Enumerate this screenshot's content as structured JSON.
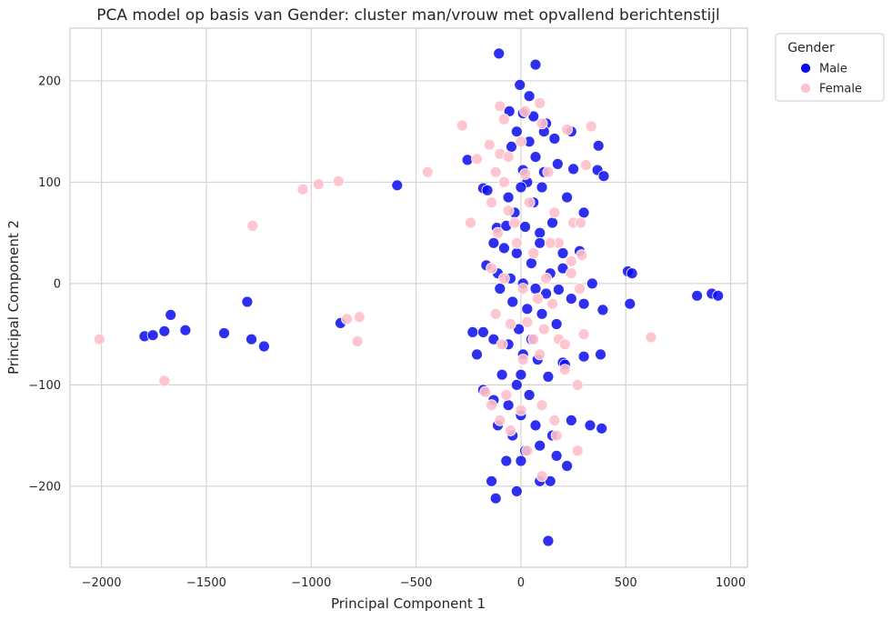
{
  "chart_data": {
    "type": "scatter",
    "title": "PCA model op basis van Gender: cluster man/vrouw met opvallend berichtenstijl",
    "xlabel": "Principal Component 1",
    "ylabel": "Principal Component 2",
    "xlim": [
      -2150,
      1080
    ],
    "ylim": [
      -280,
      252
    ],
    "xticks": [
      -2000,
      -1500,
      -1000,
      -500,
      0,
      500,
      1000
    ],
    "yticks": [
      -200,
      -100,
      0,
      100,
      200
    ],
    "xtick_labels": [
      "−2000",
      "−1500",
      "−1000",
      "−500",
      "0",
      "500",
      "1000"
    ],
    "ytick_labels": [
      "−200",
      "−100",
      "0",
      "100",
      "200"
    ],
    "grid": true,
    "legend": {
      "title": "Gender",
      "placement": "outside-top-right"
    },
    "series": [
      {
        "name": "Male",
        "color": "#0a0af0",
        "points": [
          [
            -1795,
            -52
          ],
          [
            -1755,
            -51
          ],
          [
            -1700,
            -47
          ],
          [
            -1670,
            -31
          ],
          [
            -1600,
            -46
          ],
          [
            -1415,
            -49
          ],
          [
            -1305,
            -18
          ],
          [
            -1285,
            -55
          ],
          [
            -1225,
            -62
          ],
          [
            -860,
            -39
          ],
          [
            -590,
            97
          ],
          [
            -105,
            227
          ],
          [
            70,
            216
          ],
          [
            -5,
            196
          ],
          [
            40,
            185
          ],
          [
            -55,
            170
          ],
          [
            10,
            168
          ],
          [
            60,
            165
          ],
          [
            120,
            158
          ],
          [
            -20,
            150
          ],
          [
            40,
            140
          ],
          [
            110,
            150
          ],
          [
            160,
            143
          ],
          [
            240,
            150
          ],
          [
            370,
            136
          ],
          [
            -45,
            135
          ],
          [
            70,
            125
          ],
          [
            10,
            112
          ],
          [
            -255,
            122
          ],
          [
            -180,
            94
          ],
          [
            -160,
            92
          ],
          [
            30,
            100
          ],
          [
            110,
            110
          ],
          [
            175,
            118
          ],
          [
            250,
            113
          ],
          [
            365,
            112
          ],
          [
            395,
            106
          ],
          [
            -60,
            85
          ],
          [
            0,
            95
          ],
          [
            60,
            80
          ],
          [
            100,
            95
          ],
          [
            220,
            85
          ],
          [
            300,
            70
          ],
          [
            -115,
            55
          ],
          [
            -70,
            57
          ],
          [
            20,
            56
          ],
          [
            90,
            50
          ],
          [
            -130,
            40
          ],
          [
            -80,
            35
          ],
          [
            -20,
            30
          ],
          [
            50,
            20
          ],
          [
            140,
            10
          ],
          [
            200,
            15
          ],
          [
            280,
            32
          ],
          [
            -165,
            18
          ],
          [
            -110,
            10
          ],
          [
            -50,
            5
          ],
          [
            10,
            0
          ],
          [
            70,
            -5
          ],
          [
            120,
            -10
          ],
          [
            180,
            -6
          ],
          [
            240,
            -15
          ],
          [
            300,
            -20
          ],
          [
            340,
            0
          ],
          [
            390,
            -26
          ],
          [
            510,
            12
          ],
          [
            530,
            10
          ],
          [
            520,
            -20
          ],
          [
            840,
            -12
          ],
          [
            910,
            -10
          ],
          [
            940,
            -12
          ],
          [
            -100,
            -5
          ],
          [
            -40,
            -18
          ],
          [
            30,
            -25
          ],
          [
            100,
            -30
          ],
          [
            170,
            -40
          ],
          [
            -230,
            -48
          ],
          [
            -180,
            -48
          ],
          [
            -130,
            -55
          ],
          [
            -60,
            -60
          ],
          [
            10,
            -70
          ],
          [
            80,
            -75
          ],
          [
            200,
            -78
          ],
          [
            300,
            -72
          ],
          [
            380,
            -70
          ],
          [
            -210,
            -70
          ],
          [
            -90,
            -90
          ],
          [
            -20,
            -100
          ],
          [
            40,
            -110
          ],
          [
            130,
            -92
          ],
          [
            210,
            -80
          ],
          [
            -130,
            -115
          ],
          [
            -60,
            -120
          ],
          [
            0,
            -130
          ],
          [
            70,
            -140
          ],
          [
            150,
            -150
          ],
          [
            240,
            -135
          ],
          [
            330,
            -140
          ],
          [
            385,
            -143
          ],
          [
            -180,
            -105
          ],
          [
            -110,
            -140
          ],
          [
            -40,
            -150
          ],
          [
            20,
            -165
          ],
          [
            90,
            -160
          ],
          [
            170,
            -170
          ],
          [
            220,
            -180
          ],
          [
            -140,
            -195
          ],
          [
            -70,
            -175
          ],
          [
            -20,
            -205
          ],
          [
            90,
            -195
          ],
          [
            140,
            -195
          ],
          [
            -120,
            -212
          ],
          [
            130,
            -254
          ],
          [
            0,
            -175
          ],
          [
            50,
            -55
          ],
          [
            -10,
            -45
          ],
          [
            90,
            40
          ],
          [
            150,
            60
          ],
          [
            200,
            30
          ],
          [
            -30,
            70
          ],
          [
            0,
            -90
          ]
        ]
      },
      {
        "name": "Female",
        "color": "#ffc0cb",
        "points": [
          [
            -2010,
            -55
          ],
          [
            -1700,
            -96
          ],
          [
            -1280,
            57
          ],
          [
            -1040,
            93
          ],
          [
            -965,
            98
          ],
          [
            -870,
            101
          ],
          [
            -830,
            -35
          ],
          [
            -780,
            -57
          ],
          [
            -770,
            -33
          ],
          [
            -445,
            110
          ],
          [
            -280,
            156
          ],
          [
            -210,
            123
          ],
          [
            -240,
            60
          ],
          [
            -100,
            175
          ],
          [
            -80,
            162
          ],
          [
            20,
            170
          ],
          [
            90,
            178
          ],
          [
            -150,
            137
          ],
          [
            -100,
            128
          ],
          [
            0,
            140
          ],
          [
            100,
            158
          ],
          [
            220,
            152
          ],
          [
            335,
            155
          ],
          [
            -120,
            110
          ],
          [
            -80,
            100
          ],
          [
            20,
            108
          ],
          [
            130,
            110
          ],
          [
            310,
            117
          ],
          [
            -140,
            80
          ],
          [
            -60,
            72
          ],
          [
            40,
            80
          ],
          [
            160,
            70
          ],
          [
            250,
            60
          ],
          [
            285,
            60
          ],
          [
            -110,
            50
          ],
          [
            -20,
            40
          ],
          [
            60,
            30
          ],
          [
            180,
            40
          ],
          [
            240,
            22
          ],
          [
            290,
            28
          ],
          [
            -140,
            15
          ],
          [
            -80,
            5
          ],
          [
            10,
            -5
          ],
          [
            80,
            -15
          ],
          [
            150,
            -20
          ],
          [
            280,
            -5
          ],
          [
            -120,
            -30
          ],
          [
            -50,
            -40
          ],
          [
            30,
            -38
          ],
          [
            110,
            -45
          ],
          [
            180,
            -55
          ],
          [
            210,
            -60
          ],
          [
            -90,
            -60
          ],
          [
            10,
            -75
          ],
          [
            90,
            -70
          ],
          [
            210,
            -85
          ],
          [
            620,
            -53
          ],
          [
            300,
            -50
          ],
          [
            -140,
            -120
          ],
          [
            -70,
            -110
          ],
          [
            0,
            -125
          ],
          [
            100,
            -120
          ],
          [
            160,
            -135
          ],
          [
            270,
            -100
          ],
          [
            -170,
            -107
          ],
          [
            -50,
            -145
          ],
          [
            30,
            -165
          ],
          [
            100,
            -190
          ],
          [
            270,
            -165
          ],
          [
            170,
            -150
          ],
          [
            -100,
            -135
          ],
          [
            240,
            10
          ],
          [
            -30,
            60
          ],
          [
            60,
            -55
          ],
          [
            120,
            5
          ],
          [
            -60,
            125
          ],
          [
            140,
            40
          ]
        ]
      }
    ]
  }
}
